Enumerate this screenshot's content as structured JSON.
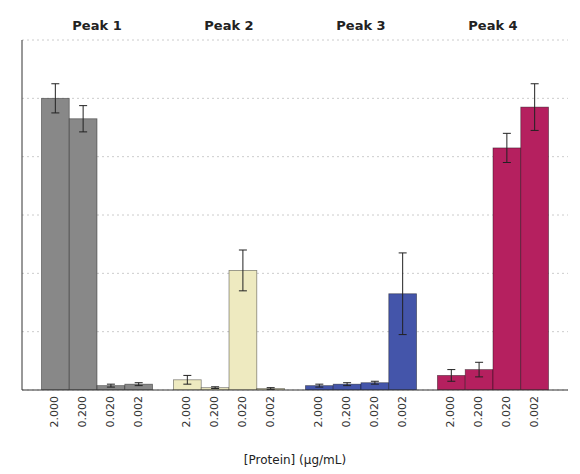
{
  "chart_data": {
    "type": "bar",
    "x_label": "[Protein] (μg/mL)",
    "categories": [
      "2.000",
      "0.200",
      "0.020",
      "0.002"
    ],
    "series": [
      {
        "name": "Peak 1",
        "color": "#888888",
        "values": [
          100.0,
          93.0,
          1.5,
          2.0
        ],
        "errors": [
          5.0,
          4.5,
          0.5,
          0.5
        ]
      },
      {
        "name": "Peak 2",
        "color": "#eeeac0",
        "values": [
          3.5,
          0.8,
          41.0,
          0.5
        ],
        "errors": [
          1.5,
          0.3,
          7.0,
          0.3
        ]
      },
      {
        "name": "Peak 3",
        "color": "#4455aa",
        "values": [
          1.5,
          2.0,
          2.5,
          33.0
        ],
        "errors": [
          0.5,
          0.5,
          0.5,
          14.0
        ]
      },
      {
        "name": "Peak 4",
        "color": "#b5205f",
        "values": [
          5.0,
          7.0,
          83.0,
          97.0
        ],
        "errors": [
          2.0,
          2.5,
          5.0,
          8.0
        ]
      }
    ],
    "ylim": [
      0,
      120
    ],
    "yticks": [
      0,
      20,
      40,
      60,
      80,
      100,
      120
    ],
    "grid": true,
    "tick_labels": "x"
  }
}
